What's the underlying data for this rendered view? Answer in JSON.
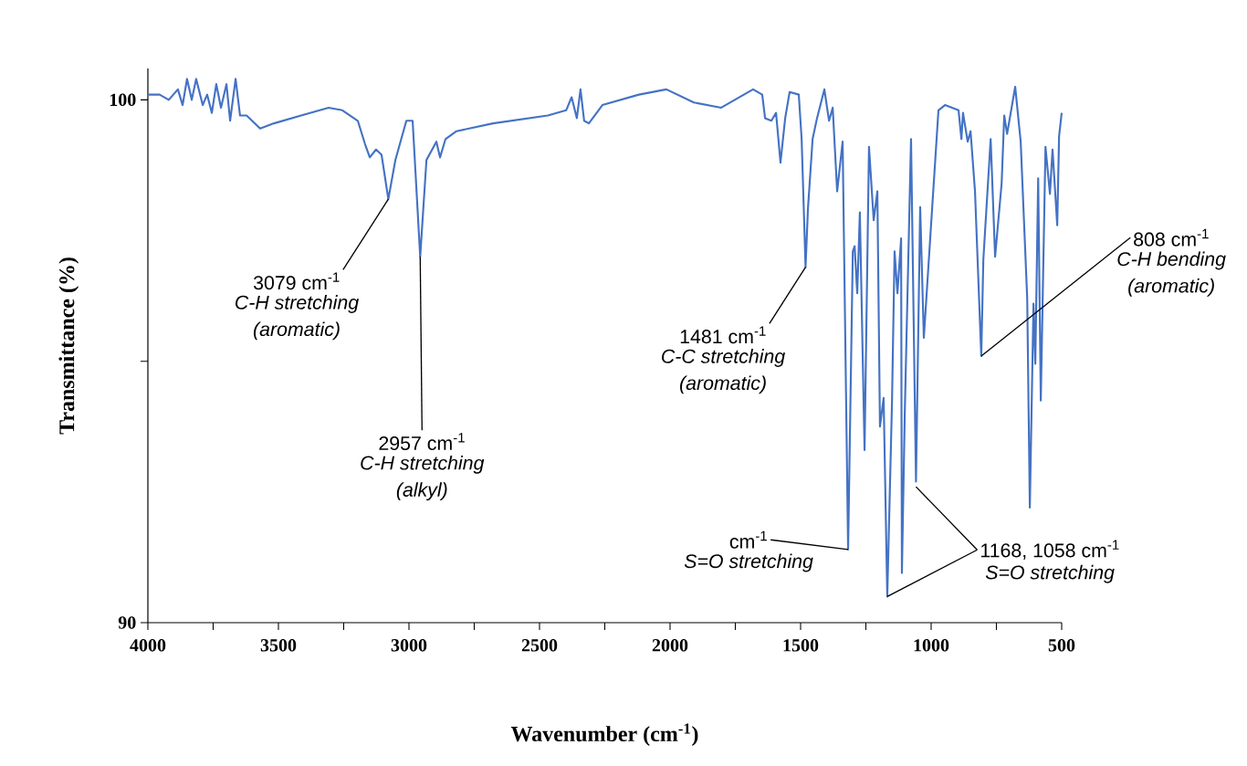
{
  "chart_data": {
    "type": "line",
    "xlabel": "Wavenumber (cm$^{-1}$)",
    "ylabel": "Transmittance (%)",
    "xlim": [
      4000,
      500
    ],
    "ylim": [
      90,
      100.6
    ],
    "xticks": [
      4000,
      {
        "value": 3750,
        "label": null
      },
      3500,
      {
        "value": 3250,
        "label": null
      },
      3000,
      {
        "value": 2750,
        "label": null
      },
      2500,
      {
        "value": 2250,
        "label": null
      },
      2000,
      {
        "value": 1750,
        "label": null
      },
      1500,
      {
        "value": 1250,
        "label": null
      },
      1000,
      {
        "value": 750,
        "label": null
      },
      500
    ],
    "yticks": [
      90,
      {
        "value": 95,
        "label": null
      },
      100
    ],
    "annotations": [
      {
        "text": "3079 cm$^{-1}$",
        "x": 3079,
        "y": 98.1
      },
      "C-H  stretching",
      "(aromatic)",
      {
        "text": "2957 cm$^{-1}$",
        "x": 2957,
        "y": 97.0
      },
      "C-H stretching",
      "(alkyl)",
      {
        "text": "1481 cm$^{-1}$",
        "x": 1481,
        "y": 96.8
      },
      "C-C stretching",
      "(aromatic)",
      {
        "text": "808 cm$^{-1}$",
        "x": 808,
        "y": 95.1
      },
      "C-H bending",
      "(aromatic)",
      {
        "text": "cm$^{-1}$",
        "x": 1318,
        "y": 91.4
      },
      "S=O stretching",
      {
        "text": "1168, 1058 cm$^{-1}$",
        "x": 1168,
        "y": 90.5
      },
      "S=O stretching"
    ],
    "series": [
      {
        "color": "#4472c4",
        "x": [
          4000,
          3955,
          3920,
          3885,
          3867,
          3850,
          3832,
          3815,
          3790,
          3773,
          3755,
          3738,
          3720,
          3699,
          3685,
          3664,
          3647,
          3622,
          3570,
          3517,
          3413,
          3308,
          3255,
          3196,
          3168,
          3150,
          3126,
          3105,
          3079,
          3052,
          3010,
          2986,
          2957,
          2933,
          2895,
          2881,
          2860,
          2818,
          2678,
          2468,
          2398,
          2377,
          2357,
          2343,
          2329,
          2311,
          2259,
          2119,
          2014,
          1909,
          1804,
          1682,
          1647,
          1636,
          1612,
          1594,
          1577,
          1559,
          1542,
          1507,
          1496,
          1481,
          1472,
          1454,
          1437,
          1409,
          1391,
          1377,
          1360,
          1339,
          1318,
          1300,
          1293,
          1283,
          1273,
          1255,
          1238,
          1220,
          1206,
          1196,
          1182,
          1168,
          1150,
          1140,
          1129,
          1115,
          1112,
          1101,
          1077,
          1058,
          1042,
          1028,
          972,
          947,
          895,
          884,
          878,
          860,
          849,
          832,
          808,
          800,
          772,
          755,
          730,
          720,
          709,
          678,
          657,
          632,
          622,
          608,
          601,
          590,
          580,
          562,
          545,
          535,
          517,
          510,
          500
        ],
        "values": [
          100.1,
          100.1,
          100.0,
          100.2,
          99.9,
          100.4,
          100.0,
          100.4,
          99.9,
          100.1,
          99.75,
          100.3,
          99.85,
          100.3,
          99.6,
          100.4,
          99.7,
          99.7,
          99.45,
          99.55,
          99.7,
          99.85,
          99.8,
          99.6,
          99.15,
          98.9,
          99.05,
          98.95,
          98.1,
          98.85,
          99.6,
          99.6,
          97.0,
          98.85,
          99.2,
          98.9,
          99.25,
          99.4,
          99.55,
          99.7,
          99.8,
          100.05,
          99.65,
          100.2,
          99.6,
          99.55,
          99.9,
          100.1,
          100.2,
          99.95,
          99.85,
          100.2,
          100.1,
          99.65,
          99.6,
          99.75,
          98.8,
          99.65,
          100.15,
          100.1,
          99.25,
          96.8,
          97.9,
          99.25,
          99.65,
          100.2,
          99.6,
          99.85,
          98.25,
          99.2,
          91.4,
          97.1,
          97.2,
          96.3,
          97.85,
          93.3,
          99.1,
          97.7,
          98.25,
          93.75,
          94.3,
          90.5,
          94.2,
          97.1,
          96.3,
          97.35,
          90.95,
          94.0,
          99.25,
          92.7,
          97.95,
          95.45,
          99.8,
          99.9,
          99.8,
          99.25,
          99.75,
          99.2,
          99.4,
          98.25,
          95.1,
          96.95,
          99.25,
          97.0,
          98.4,
          99.7,
          99.35,
          100.25,
          99.2,
          96.2,
          92.2,
          96.1,
          94.95,
          98.5,
          94.25,
          99.1,
          98.2,
          99.05,
          97.6,
          99.3,
          99.75
        ]
      }
    ]
  }
}
